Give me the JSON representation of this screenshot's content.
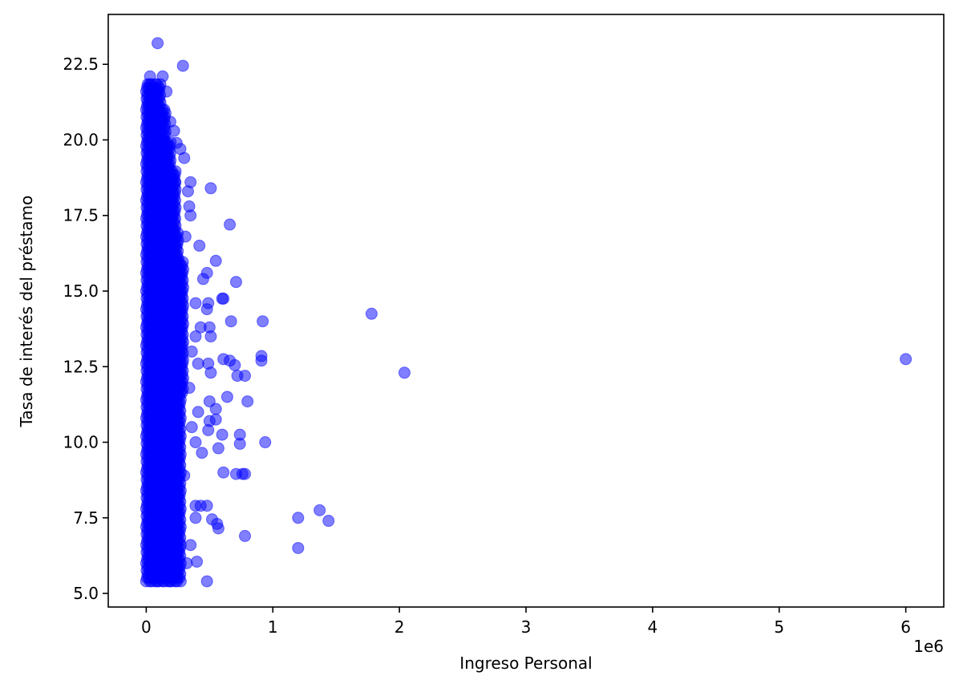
{
  "chart_data": {
    "type": "scatter",
    "title": "",
    "xlabel": "Ingreso Personal",
    "ylabel": "Tasa de interés del préstamo",
    "x_offset_text": "1e6",
    "xlim": [
      -0.3,
      6.3
    ],
    "ylim": [
      4.55,
      24.15
    ],
    "x_unit_multiplier": 1000000,
    "xticks": [
      0,
      1,
      2,
      3,
      4,
      5,
      6
    ],
    "xtick_labels": [
      "0",
      "1",
      "2",
      "3",
      "4",
      "5",
      "6"
    ],
    "yticks": [
      5.0,
      7.5,
      10.0,
      12.5,
      15.0,
      17.5,
      20.0,
      22.5
    ],
    "ytick_labels": [
      "5.0",
      "7.5",
      "10.0",
      "12.5",
      "15.0",
      "17.5",
      "20.0",
      "22.5"
    ],
    "grid": false,
    "legend": "none",
    "marker_color": "#0000ff",
    "marker_alpha": 0.5,
    "points": [
      [
        0.09,
        23.2
      ],
      [
        0.29,
        22.45
      ],
      [
        0.03,
        22.1
      ],
      [
        0.13,
        22.1
      ],
      [
        0.16,
        21.6
      ],
      [
        0.19,
        20.6
      ],
      [
        0.22,
        20.3
      ],
      [
        0.24,
        19.9
      ],
      [
        0.27,
        19.7
      ],
      [
        0.3,
        19.4
      ],
      [
        0.23,
        18.6
      ],
      [
        0.35,
        18.6
      ],
      [
        0.33,
        18.3
      ],
      [
        0.51,
        18.4
      ],
      [
        0.34,
        17.8
      ],
      [
        0.35,
        17.5
      ],
      [
        0.66,
        17.2
      ],
      [
        0.31,
        16.8
      ],
      [
        0.42,
        16.5
      ],
      [
        0.55,
        16.0
      ],
      [
        0.48,
        15.6
      ],
      [
        0.45,
        15.4
      ],
      [
        0.71,
        15.3
      ],
      [
        0.6,
        14.75
      ],
      [
        0.61,
        14.75
      ],
      [
        0.39,
        14.6
      ],
      [
        0.49,
        14.6
      ],
      [
        0.48,
        14.4
      ],
      [
        0.67,
        14.0
      ],
      [
        0.92,
        14.0
      ],
      [
        0.43,
        13.8
      ],
      [
        0.5,
        13.8
      ],
      [
        0.39,
        13.5
      ],
      [
        0.51,
        13.5
      ],
      [
        0.36,
        13.0
      ],
      [
        0.61,
        12.75
      ],
      [
        0.66,
        12.7
      ],
      [
        0.41,
        12.6
      ],
      [
        0.49,
        12.6
      ],
      [
        0.91,
        12.85
      ],
      [
        0.91,
        12.7
      ],
      [
        0.7,
        12.55
      ],
      [
        0.51,
        12.3
      ],
      [
        0.72,
        12.2
      ],
      [
        0.78,
        12.2
      ],
      [
        0.34,
        11.8
      ],
      [
        0.64,
        11.5
      ],
      [
        0.5,
        11.35
      ],
      [
        0.8,
        11.35
      ],
      [
        0.55,
        11.1
      ],
      [
        0.41,
        11.0
      ],
      [
        0.5,
        10.7
      ],
      [
        0.55,
        10.75
      ],
      [
        0.36,
        10.5
      ],
      [
        0.49,
        10.4
      ],
      [
        0.6,
        10.25
      ],
      [
        0.74,
        10.25
      ],
      [
        0.94,
        10.0
      ],
      [
        0.39,
        10.0
      ],
      [
        0.57,
        9.8
      ],
      [
        0.74,
        9.95
      ],
      [
        0.44,
        9.65
      ],
      [
        0.61,
        9.0
      ],
      [
        0.71,
        8.95
      ],
      [
        0.76,
        8.95
      ],
      [
        0.78,
        8.95
      ],
      [
        0.3,
        8.9
      ],
      [
        0.39,
        7.9
      ],
      [
        0.43,
        7.9
      ],
      [
        0.48,
        7.9
      ],
      [
        0.52,
        7.45
      ],
      [
        0.56,
        7.3
      ],
      [
        0.57,
        7.15
      ],
      [
        0.39,
        7.5
      ],
      [
        0.78,
        6.9
      ],
      [
        0.35,
        6.6
      ],
      [
        0.4,
        6.05
      ],
      [
        0.32,
        6.0
      ],
      [
        0.48,
        5.4
      ],
      [
        1.2,
        7.5
      ],
      [
        1.37,
        7.75
      ],
      [
        1.44,
        7.4
      ],
      [
        1.2,
        6.5
      ],
      [
        1.78,
        14.25
      ],
      [
        2.04,
        12.3
      ],
      [
        6.0,
        12.75
      ]
    ]
  }
}
